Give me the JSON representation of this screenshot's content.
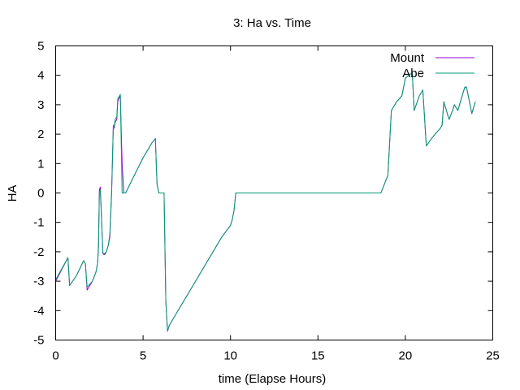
{
  "chart_data": {
    "type": "line",
    "title": "3: Ha vs. Time",
    "xlabel": "time (Elapse Hours)",
    "ylabel": "HA",
    "xlim": [
      0,
      25
    ],
    "ylim": [
      -5,
      5
    ],
    "xticks": [
      0,
      5,
      10,
      15,
      20,
      25
    ],
    "yticks": [
      -5,
      -4,
      -3,
      -2,
      -1,
      0,
      1,
      2,
      3,
      4,
      5
    ],
    "xtick_labels": [
      "0",
      "5",
      "10",
      "15",
      "20",
      "25"
    ],
    "ytick_labels": [
      "-5",
      "-4",
      "-3",
      "-2",
      "-1",
      "0",
      "1",
      "2",
      "3",
      "4",
      "5"
    ],
    "grid": false,
    "legend_position": "top-right",
    "series": [
      {
        "name": "Mount",
        "color": "#9400d3",
        "x": [
          0,
          0.7,
          0.8,
          1.2,
          1.6,
          1.7,
          1.8,
          2.1,
          2.3,
          2.4,
          2.45,
          2.5,
          2.55,
          2.6,
          2.7,
          2.75,
          2.8,
          2.9,
          3.0,
          3.1,
          3.2,
          3.3,
          3.35,
          3.4,
          3.5,
          3.55,
          3.6,
          3.7,
          3.8,
          3.9,
          3.95,
          4.0,
          4.5,
          5.0,
          5.5,
          5.7,
          5.8,
          5.9,
          6.0,
          6.2,
          6.3,
          6.4,
          6.5,
          7.0,
          7.5,
          8.0,
          8.5,
          9.0,
          9.5,
          10.0,
          10.1,
          10.2,
          10.3,
          18.6,
          19.0,
          19.2,
          19.5,
          19.8,
          20.0,
          20.3,
          20.4,
          20.5,
          20.8,
          21.0,
          21.2,
          21.5,
          21.7,
          22.0,
          22.1,
          22.2,
          22.5,
          22.7,
          22.8,
          23.0,
          23.3,
          23.4,
          23.5,
          23.8,
          24.0
        ],
        "y": [
          -3.0,
          -2.2,
          -3.15,
          -2.8,
          -2.3,
          -2.4,
          -3.3,
          -3.0,
          -2.7,
          -2.4,
          -1.8,
          0.1,
          0.2,
          -0.5,
          -2.05,
          -2.1,
          -2.1,
          -2.0,
          -1.8,
          -1.5,
          0.0,
          2.3,
          2.2,
          2.4,
          2.5,
          3.1,
          3.2,
          3.3,
          1.0,
          0.0,
          0.0,
          0.0,
          0.6,
          1.2,
          1.7,
          1.85,
          0.3,
          0.0,
          0.0,
          0.0,
          -3.7,
          -4.7,
          -4.5,
          -4.0,
          -3.5,
          -3.0,
          -2.5,
          -2.0,
          -1.5,
          -1.1,
          -0.9,
          -0.6,
          0.0,
          0.0,
          0.6,
          2.8,
          3.1,
          3.3,
          3.9,
          4.05,
          4.05,
          2.8,
          3.3,
          3.5,
          1.6,
          1.85,
          2.0,
          2.2,
          2.3,
          3.1,
          2.5,
          2.8,
          3.0,
          2.8,
          3.4,
          3.6,
          3.6,
          2.7,
          3.1
        ]
      },
      {
        "name": "Abe",
        "color": "#009e73",
        "x": [
          0,
          0.7,
          0.8,
          1.2,
          1.6,
          1.7,
          1.8,
          2.1,
          2.3,
          2.4,
          2.45,
          2.5,
          2.55,
          2.6,
          2.7,
          2.75,
          2.8,
          2.9,
          3.0,
          3.1,
          3.2,
          3.3,
          3.35,
          3.4,
          3.5,
          3.55,
          3.6,
          3.7,
          3.8,
          3.9,
          3.95,
          4.0,
          4.5,
          5.0,
          5.5,
          5.7,
          5.8,
          5.9,
          6.0,
          6.2,
          6.3,
          6.4,
          6.5,
          7.0,
          7.5,
          8.0,
          8.5,
          9.0,
          9.5,
          10.0,
          10.1,
          10.2,
          10.3,
          18.6,
          19.0,
          19.2,
          19.5,
          19.8,
          20.0,
          20.3,
          20.4,
          20.5,
          20.8,
          21.0,
          21.2,
          21.5,
          21.7,
          22.0,
          22.1,
          22.2,
          22.5,
          22.7,
          22.8,
          23.0,
          23.3,
          23.4,
          23.5,
          23.8,
          24.0
        ],
        "y": [
          -2.95,
          -2.2,
          -3.15,
          -2.8,
          -2.3,
          -2.4,
          -3.2,
          -3.0,
          -2.7,
          -2.4,
          -1.9,
          0.0,
          0.1,
          -0.6,
          -2.0,
          -2.1,
          -2.05,
          -2.0,
          -1.8,
          -1.4,
          0.1,
          2.3,
          2.25,
          2.5,
          2.6,
          3.2,
          3.25,
          3.35,
          0.0,
          0.0,
          0.0,
          0.0,
          0.6,
          1.2,
          1.7,
          1.85,
          0.3,
          0.0,
          0.0,
          0.0,
          -3.7,
          -4.7,
          -4.5,
          -4.0,
          -3.5,
          -3.0,
          -2.5,
          -2.0,
          -1.5,
          -1.1,
          -0.9,
          -0.6,
          0.0,
          0.0,
          0.6,
          2.8,
          3.1,
          3.3,
          3.9,
          4.05,
          4.05,
          2.8,
          3.3,
          3.5,
          1.6,
          1.85,
          2.0,
          2.2,
          2.3,
          3.1,
          2.5,
          2.8,
          3.0,
          2.8,
          3.4,
          3.6,
          3.6,
          2.7,
          3.1
        ]
      }
    ]
  }
}
